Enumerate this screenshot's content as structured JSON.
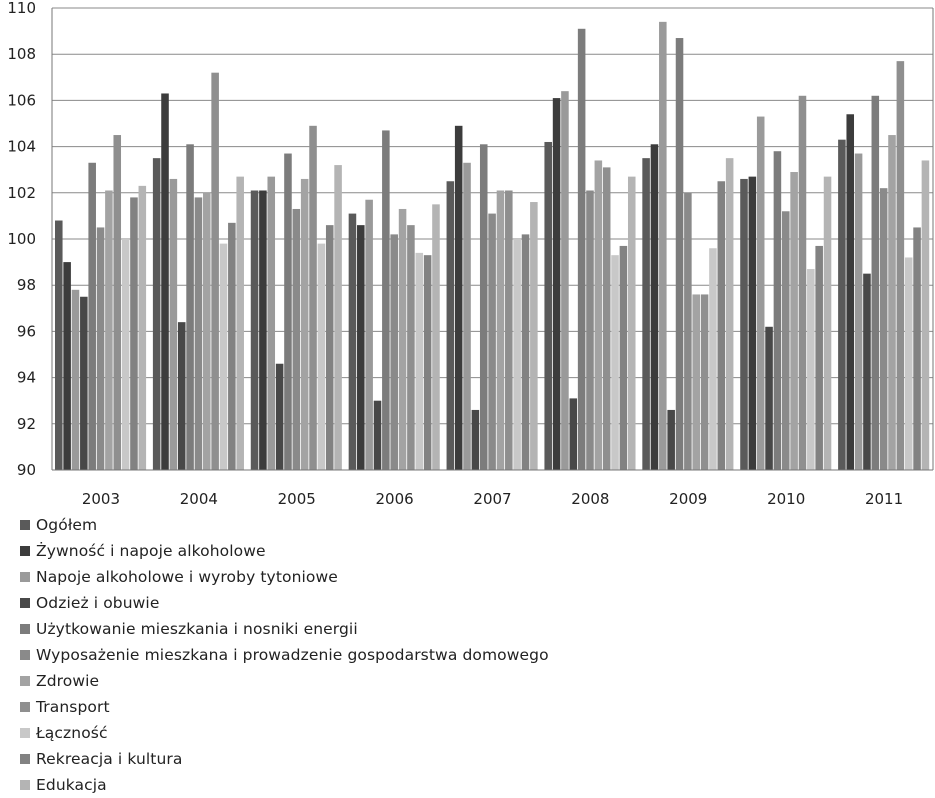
{
  "chart_data": {
    "type": "bar",
    "categories": [
      "2003",
      "2004",
      "2005",
      "2006",
      "2007",
      "2008",
      "2009",
      "2010",
      "2011"
    ],
    "ylim": [
      90,
      110
    ],
    "yticks": [
      90,
      92,
      94,
      96,
      98,
      100,
      102,
      104,
      106,
      108,
      110
    ],
    "grid": true,
    "legend_position": "bottom",
    "series": [
      {
        "name": "Ogółem",
        "color": "#5a5a5a",
        "values": [
          100.8,
          103.5,
          102.1,
          101.1,
          102.5,
          104.2,
          103.5,
          102.6,
          104.3
        ]
      },
      {
        "name": "Żywność i napoje alkoholowe",
        "color": "#3c3c3c",
        "values": [
          99.0,
          106.3,
          102.1,
          100.6,
          104.9,
          106.1,
          104.1,
          102.7,
          105.4
        ]
      },
      {
        "name": "Napoje alkoholowe i wyroby tytoniowe",
        "color": "#9a9a9a",
        "values": [
          97.8,
          102.6,
          102.7,
          101.7,
          103.3,
          106.4,
          109.4,
          105.3,
          103.7
        ]
      },
      {
        "name": "Odzież i obuwie",
        "color": "#484848",
        "values": [
          97.5,
          96.4,
          94.6,
          93.0,
          92.6,
          93.1,
          92.6,
          96.2,
          98.5
        ]
      },
      {
        "name": "Użytkowanie mieszkania i nosniki energii",
        "color": "#7c7c7c",
        "values": [
          103.3,
          104.1,
          103.7,
          104.7,
          104.1,
          109.1,
          108.7,
          103.8,
          106.2
        ]
      },
      {
        "name": "Wyposażenie mieszkana i prowadzenie gospodarstwa domowego",
        "color": "#8a8a8a",
        "values": [
          100.5,
          101.8,
          101.3,
          100.2,
          101.1,
          102.1,
          102.0,
          101.2,
          102.2
        ]
      },
      {
        "name": "Zdrowie",
        "color": "#a3a3a3",
        "values": [
          102.1,
          102.0,
          102.6,
          101.3,
          102.1,
          103.4,
          97.6,
          102.9,
          104.5
        ]
      },
      {
        "name": "Transport",
        "color": "#8f8f8f",
        "values": [
          104.5,
          107.2,
          104.9,
          100.6,
          102.1,
          103.1,
          97.6,
          106.2,
          107.7
        ]
      },
      {
        "name": "Łączność",
        "color": "#c8c8c8",
        "values": [
          100.0,
          99.8,
          99.8,
          99.4,
          100.0,
          99.3,
          99.6,
          98.7,
          99.2
        ]
      },
      {
        "name": "Rekreacja i kultura",
        "color": "#828282",
        "values": [
          101.8,
          100.7,
          100.6,
          99.3,
          100.2,
          99.7,
          102.5,
          99.7,
          100.5
        ]
      },
      {
        "name": "Edukacja",
        "color": "#b4b4b4",
        "values": [
          102.3,
          102.7,
          103.2,
          101.5,
          101.6,
          102.7,
          103.5,
          102.7,
          103.4
        ]
      }
    ]
  }
}
